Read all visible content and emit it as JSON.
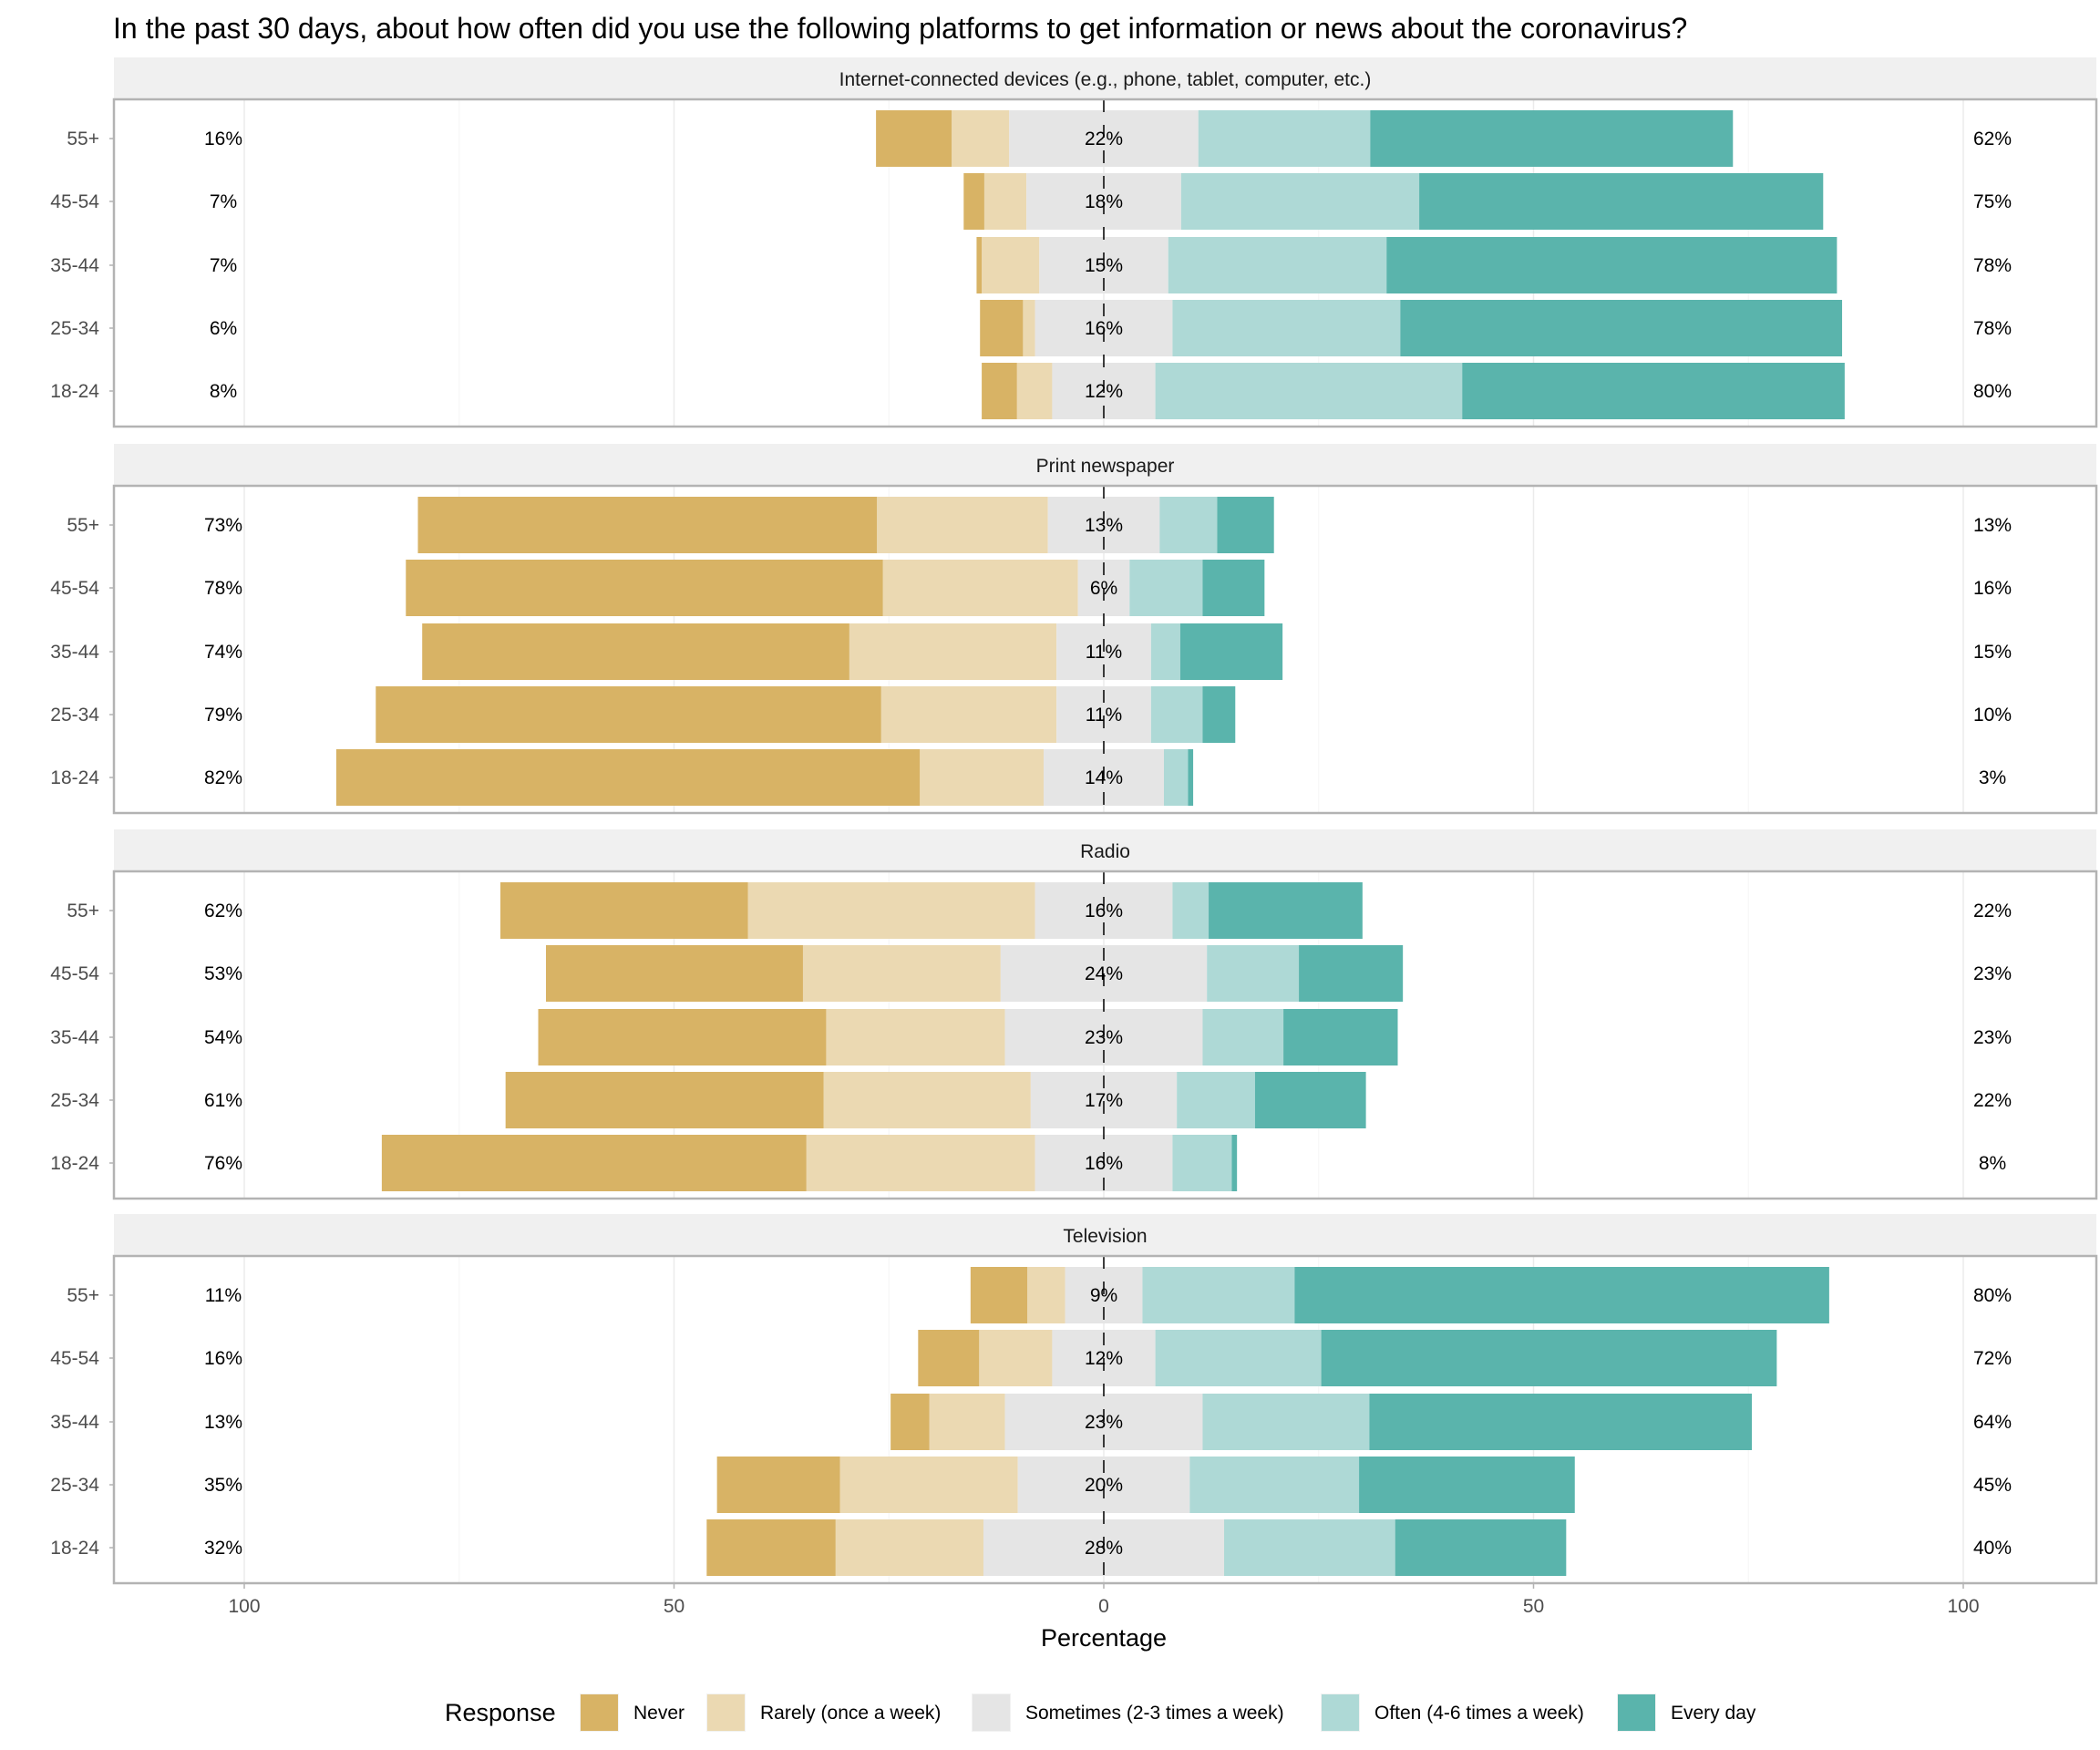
{
  "chart_data": {
    "type": "bar",
    "subtype": "diverging-stacked-horizontal",
    "title": "In the past 30 days, about how often did you use the following platforms to get information or news about the coronavirus?",
    "xlabel": "Percentage",
    "ylabel": "",
    "xlim": [
      -100,
      100
    ],
    "xticks": [
      -100,
      -50,
      0,
      50,
      100
    ],
    "xtick_labels": [
      "100",
      "50",
      "0",
      "50",
      "100"
    ],
    "grid": true,
    "legend": {
      "title": "Response",
      "position": "bottom",
      "entries": [
        {
          "name": "Never",
          "color": "#D8B365"
        },
        {
          "name": "Rarely (once a week)",
          "color": "#EBD9B2"
        },
        {
          "name": "Sometimes (2-3 times a week)",
          "color": "#E5E5E5"
        },
        {
          "name": "Often (4-6 times a week)",
          "color": "#AED9D6"
        },
        {
          "name": "Every day",
          "color": "#5AB4AC"
        }
      ]
    },
    "categories": [
      "55+",
      "45-54",
      "35-44",
      "25-34",
      "18-24"
    ],
    "panels": [
      {
        "name": "Internet-connected devices (e.g., phone, tablet, computer, etc.)",
        "rows": [
          {
            "age": "55+",
            "values": [
              8.8,
              6.7,
              22,
              20.0,
              42.2
            ],
            "low_label": "16%",
            "mid_label": "22%",
            "high_label": "62%"
          },
          {
            "age": "45-54",
            "values": [
              2.4,
              4.9,
              18,
              27.7,
              47.0
            ],
            "low_label": "7%",
            "mid_label": "18%",
            "high_label": "75%"
          },
          {
            "age": "35-44",
            "values": [
              0.6,
              6.7,
              15,
              25.4,
              52.4
            ],
            "low_label": "7%",
            "mid_label": "15%",
            "high_label": "78%"
          },
          {
            "age": "25-34",
            "values": [
              5.0,
              1.4,
              16,
              26.5,
              51.4
            ],
            "low_label": "6%",
            "mid_label": "16%",
            "high_label": "78%"
          },
          {
            "age": "18-24",
            "values": [
              4.1,
              4.1,
              12,
              35.7,
              44.5
            ],
            "low_label": "8%",
            "mid_label": "12%",
            "high_label": "80%"
          }
        ]
      },
      {
        "name": "Print newspaper",
        "rows": [
          {
            "age": "55+",
            "values": [
              53.4,
              19.9,
              13,
              6.7,
              6.6
            ],
            "low_label": "73%",
            "mid_label": "13%",
            "high_label": "13%"
          },
          {
            "age": "45-54",
            "values": [
              55.5,
              22.7,
              6,
              8.5,
              7.2
            ],
            "low_label": "78%",
            "mid_label": "6%",
            "high_label": "16%"
          },
          {
            "age": "35-44",
            "values": [
              49.7,
              24.1,
              11,
              3.4,
              11.9
            ],
            "low_label": "74%",
            "mid_label": "11%",
            "high_label": "15%"
          },
          {
            "age": "25-34",
            "values": [
              58.8,
              20.4,
              11,
              6.0,
              3.8
            ],
            "low_label": "79%",
            "mid_label": "11%",
            "high_label": "10%"
          },
          {
            "age": "18-24",
            "values": [
              67.9,
              14.4,
              14,
              2.8,
              0.6
            ],
            "low_label": "82%",
            "mid_label": "14%",
            "high_label": "3%"
          }
        ]
      },
      {
        "name": "Radio",
        "rows": [
          {
            "age": "55+",
            "values": [
              28.8,
              33.4,
              16,
              4.2,
              17.9
            ],
            "low_label": "62%",
            "mid_label": "16%",
            "high_label": "22%"
          },
          {
            "age": "45-54",
            "values": [
              29.9,
              23.0,
              24,
              10.7,
              12.1
            ],
            "low_label": "53%",
            "mid_label": "24%",
            "high_label": "23%"
          },
          {
            "age": "35-44",
            "values": [
              33.5,
              20.8,
              23,
              9.4,
              13.3
            ],
            "low_label": "54%",
            "mid_label": "23%",
            "high_label": "23%"
          },
          {
            "age": "25-34",
            "values": [
              37.0,
              24.1,
              17,
              9.1,
              12.9
            ],
            "low_label": "61%",
            "mid_label": "17%",
            "high_label": "22%"
          },
          {
            "age": "18-24",
            "values": [
              49.4,
              26.6,
              16,
              6.9,
              0.6
            ],
            "low_label": "76%",
            "mid_label": "16%",
            "high_label": "8%"
          }
        ]
      },
      {
        "name": "Television",
        "rows": [
          {
            "age": "55+",
            "values": [
              6.6,
              4.4,
              9,
              17.7,
              62.2
            ],
            "low_label": "11%",
            "mid_label": "9%",
            "high_label": "80%"
          },
          {
            "age": "45-54",
            "values": [
              7.1,
              8.5,
              12,
              19.3,
              53.0
            ],
            "low_label": "16%",
            "mid_label": "12%",
            "high_label": "72%"
          },
          {
            "age": "35-44",
            "values": [
              4.5,
              8.8,
              23,
              19.4,
              44.5
            ],
            "low_label": "13%",
            "mid_label": "23%",
            "high_label": "64%"
          },
          {
            "age": "25-34",
            "values": [
              14.3,
              20.7,
              20,
              19.7,
              25.1
            ],
            "low_label": "35%",
            "mid_label": "20%",
            "high_label": "45%"
          },
          {
            "age": "18-24",
            "values": [
              15.0,
              17.2,
              28,
              19.9,
              19.9
            ],
            "low_label": "32%",
            "mid_label": "28%",
            "high_label": "40%"
          }
        ]
      }
    ]
  }
}
